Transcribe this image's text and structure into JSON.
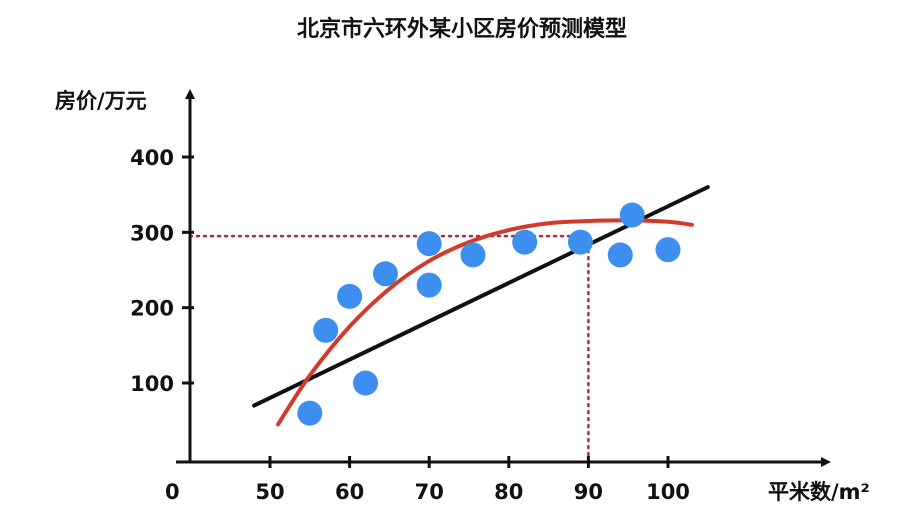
{
  "chart_data": {
    "type": "scatter",
    "title": "北京市六环外某小区房价预测模型",
    "xlabel": "平米数/m²",
    "ylabel": "房价/万元",
    "xlim": [
      45,
      110
    ],
    "ylim": [
      0,
      420
    ],
    "origin_label": "0",
    "x_ticks": [
      50,
      60,
      70,
      80,
      90,
      100
    ],
    "x_tick_labels": [
      "50",
      "60",
      "70",
      "80",
      "90",
      "100"
    ],
    "y_ticks": [
      100,
      200,
      300,
      400
    ],
    "y_tick_labels": [
      "100",
      "200",
      "300",
      "400"
    ],
    "grid": false,
    "legend": false,
    "series": [
      {
        "kind": "scatter",
        "color": "#3d8fef",
        "points": [
          {
            "x": 55,
            "y": 60
          },
          {
            "x": 57,
            "y": 170
          },
          {
            "x": 60,
            "y": 215
          },
          {
            "x": 62,
            "y": 100
          },
          {
            "x": 64.5,
            "y": 245
          },
          {
            "x": 70,
            "y": 285
          },
          {
            "x": 70,
            "y": 230
          },
          {
            "x": 75.5,
            "y": 270
          },
          {
            "x": 82,
            "y": 287
          },
          {
            "x": 89,
            "y": 287
          },
          {
            "x": 94,
            "y": 270
          },
          {
            "x": 95.5,
            "y": 323
          },
          {
            "x": 100,
            "y": 277
          }
        ]
      },
      {
        "kind": "line",
        "fit": "linear",
        "color": "#111111",
        "points": [
          {
            "x": 48,
            "y": 70
          },
          {
            "x": 105,
            "y": 360
          }
        ]
      },
      {
        "kind": "line",
        "fit": "quadratic",
        "color": "#d23a2a",
        "points": [
          {
            "x": 51,
            "y": 45
          },
          {
            "x": 55,
            "y": 110
          },
          {
            "x": 60,
            "y": 175
          },
          {
            "x": 65,
            "y": 225
          },
          {
            "x": 70,
            "y": 262
          },
          {
            "x": 75,
            "y": 287
          },
          {
            "x": 80,
            "y": 303
          },
          {
            "x": 85,
            "y": 312
          },
          {
            "x": 90,
            "y": 315
          },
          {
            "x": 95,
            "y": 316
          },
          {
            "x": 100,
            "y": 314
          },
          {
            "x": 103,
            "y": 310
          }
        ]
      }
    ],
    "reference": {
      "x": 90,
      "y": 295,
      "color": "#9b3050"
    }
  }
}
